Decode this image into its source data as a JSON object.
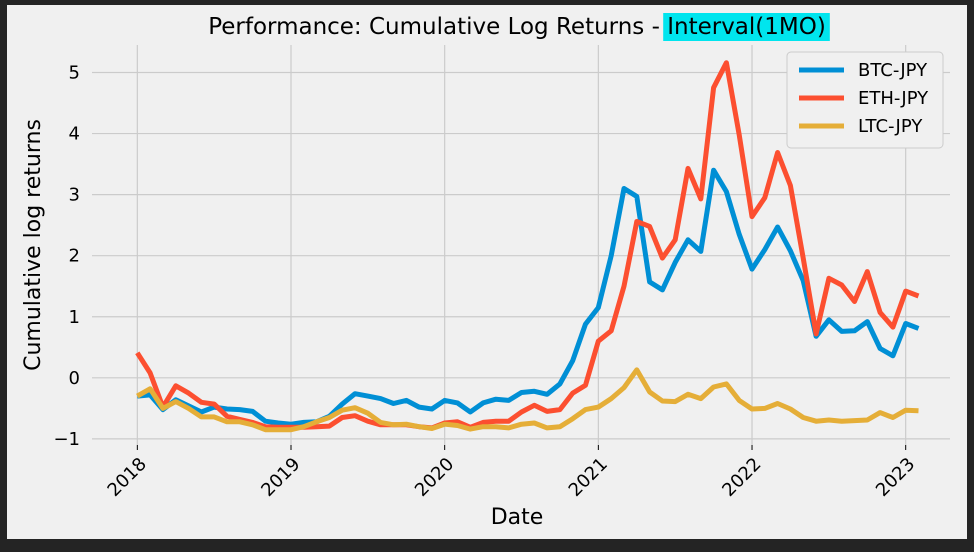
{
  "chart_data": {
    "type": "line",
    "title": "Performance: Cumulative Log Returns - ",
    "title_highlight": "Interval(1MO)",
    "title_highlight_color": "#00e5ee",
    "xlabel": "Date",
    "ylabel": "Cumulative log returns",
    "x_start": "2018-01",
    "x_interval": "1MO",
    "xlim": [
      "2017-09-15",
      "2023-04-15"
    ],
    "ylim": [
      -1.1,
      5.45
    ],
    "x_ticks": [
      "2018-01",
      "2019-01",
      "2020-01",
      "2021-01",
      "2022-01",
      "2023-01"
    ],
    "x_tick_labels": [
      "2018",
      "2019",
      "2020",
      "2021",
      "2022",
      "2023"
    ],
    "y_ticks": [
      -1,
      0,
      1,
      2,
      3,
      4,
      5
    ],
    "y_tick_labels": [
      "−1",
      "0",
      "1",
      "2",
      "3",
      "4",
      "5"
    ],
    "grid": true,
    "legend_position": "top-right",
    "background_color": "#f0f0f0",
    "figure_background": "#242424",
    "series": [
      {
        "name": "BTC-JPY",
        "color": "#008fd5",
        "values": [
          -0.3,
          -0.28,
          -0.52,
          -0.36,
          -0.46,
          -0.56,
          -0.48,
          -0.51,
          -0.52,
          -0.55,
          -0.71,
          -0.74,
          -0.76,
          -0.73,
          -0.72,
          -0.63,
          -0.43,
          -0.26,
          -0.3,
          -0.34,
          -0.42,
          -0.37,
          -0.48,
          -0.51,
          -0.37,
          -0.41,
          -0.56,
          -0.41,
          -0.35,
          -0.37,
          -0.24,
          -0.22,
          -0.27,
          -0.1,
          0.28,
          0.88,
          1.15,
          2.0,
          3.1,
          2.97,
          1.57,
          1.44,
          1.89,
          2.26,
          2.07,
          3.4,
          3.05,
          2.35,
          1.78,
          2.1,
          2.47,
          2.08,
          1.59,
          0.68,
          0.95,
          0.76,
          0.77,
          0.92,
          0.48,
          0.36,
          0.89,
          0.81
        ]
      },
      {
        "name": "ETH-JPY",
        "color": "#fc4f30",
        "values": [
          0.41,
          0.08,
          -0.48,
          -0.13,
          -0.25,
          -0.4,
          -0.43,
          -0.63,
          -0.68,
          -0.73,
          -0.8,
          -0.81,
          -0.81,
          -0.81,
          -0.8,
          -0.79,
          -0.65,
          -0.62,
          -0.71,
          -0.77,
          -0.77,
          -0.77,
          -0.8,
          -0.82,
          -0.74,
          -0.72,
          -0.81,
          -0.73,
          -0.71,
          -0.71,
          -0.56,
          -0.45,
          -0.55,
          -0.52,
          -0.25,
          -0.12,
          0.6,
          0.77,
          1.5,
          2.56,
          2.48,
          1.96,
          2.26,
          3.43,
          2.93,
          4.75,
          5.16,
          3.98,
          2.64,
          2.95,
          3.69,
          3.15,
          1.96,
          0.72,
          1.63,
          1.52,
          1.25,
          1.74,
          1.07,
          0.83,
          1.42,
          1.34
        ]
      },
      {
        "name": "LTC-JPY",
        "color": "#e5ae38",
        "values": [
          -0.3,
          -0.18,
          -0.5,
          -0.39,
          -0.5,
          -0.64,
          -0.64,
          -0.72,
          -0.72,
          -0.77,
          -0.85,
          -0.85,
          -0.85,
          -0.8,
          -0.72,
          -0.65,
          -0.53,
          -0.49,
          -0.58,
          -0.73,
          -0.77,
          -0.76,
          -0.8,
          -0.83,
          -0.76,
          -0.78,
          -0.84,
          -0.8,
          -0.8,
          -0.82,
          -0.76,
          -0.74,
          -0.82,
          -0.8,
          -0.67,
          -0.52,
          -0.48,
          -0.34,
          -0.16,
          0.13,
          -0.23,
          -0.38,
          -0.39,
          -0.27,
          -0.34,
          -0.15,
          -0.1,
          -0.37,
          -0.51,
          -0.5,
          -0.42,
          -0.51,
          -0.65,
          -0.71,
          -0.69,
          -0.71,
          -0.7,
          -0.69,
          -0.57,
          -0.65,
          -0.53,
          -0.54
        ]
      }
    ]
  }
}
